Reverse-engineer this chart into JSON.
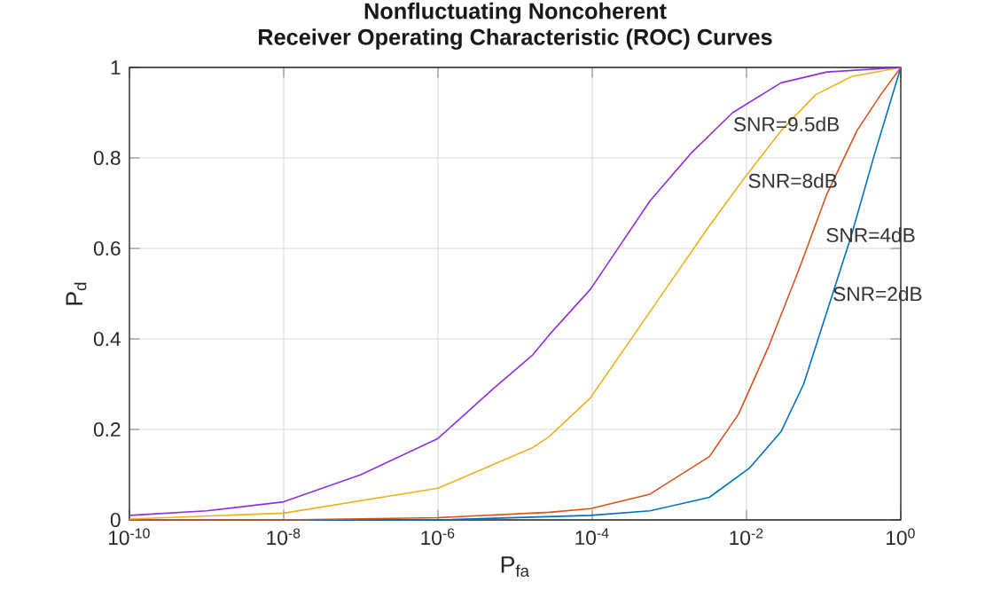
{
  "chart_data": {
    "type": "line",
    "title": "Nonfluctuating Noncoherent",
    "subtitle": "Receiver Operating Characteristic (ROC) Curves",
    "xlabel": "P$_{fa}$",
    "ylabel": "P$_{d}$",
    "log": "x",
    "grid": true,
    "marker": "none",
    "line_style": "solid",
    "xlim": [
      1e-10,
      1
    ],
    "ylim": [
      0,
      1
    ],
    "xticks": [
      {
        "value": 1e-10,
        "label": "10$^{-10}$"
      },
      {
        "value": 1e-08,
        "label": "10$^{-8}$"
      },
      {
        "value": 1e-06,
        "label": "10$^{-6}$"
      },
      {
        "value": 0.0001,
        "label": "10$^{-4}$"
      },
      {
        "value": 0.01,
        "label": "10$^{-2}$"
      },
      {
        "value": 1,
        "label": "10$^{0}$"
      }
    ],
    "yticks": [
      0,
      0.2,
      0.4,
      0.6,
      0.8,
      1
    ],
    "series": [
      {
        "color": "#0072bd",
        "x": [
          1e-10,
          1e-08,
          1e-06,
          9.5e-05,
          0.00056,
          0.0033,
          0.011,
          0.028,
          0.055,
          0.11,
          0.23,
          0.46,
          1
        ],
        "values": [
          0,
          0,
          0,
          0.01,
          0.02,
          0.05,
          0.115,
          0.195,
          0.3,
          0.46,
          0.63,
          0.81,
          1
        ]
      },
      {
        "color": "#d95319",
        "x": [
          1e-10,
          1e-08,
          1e-06,
          2.8e-05,
          9.5e-05,
          0.00056,
          0.0033,
          0.0079,
          0.019,
          0.047,
          0.11,
          0.27,
          0.55,
          1
        ],
        "values": [
          0,
          0,
          0.005,
          0.017,
          0.025,
          0.057,
          0.14,
          0.234,
          0.38,
          0.55,
          0.72,
          0.86,
          0.94,
          1
        ]
      },
      {
        "color": "#edb120",
        "x": [
          1e-10,
          1e-08,
          1e-06,
          1.7e-05,
          2.8e-05,
          9.5e-05,
          0.00056,
          0.0033,
          0.0095,
          0.028,
          0.079,
          0.23,
          1
        ],
        "values": [
          0.002,
          0.015,
          0.07,
          0.16,
          0.185,
          0.27,
          0.46,
          0.65,
          0.757,
          0.86,
          0.94,
          0.98,
          1
        ]
      },
      {
        "color": "#8f2fe0",
        "x": [
          1e-10,
          1e-09,
          1e-08,
          1e-07,
          1e-06,
          5.2e-06,
          1.7e-05,
          2.8e-05,
          9.5e-05,
          0.00056,
          0.0019,
          0.0066,
          0.028,
          0.11,
          1
        ],
        "values": [
          0.01,
          0.02,
          0.04,
          0.1,
          0.18,
          0.29,
          0.365,
          0.41,
          0.51,
          0.705,
          0.81,
          0.9,
          0.966,
          0.99,
          1
        ]
      }
    ],
    "annotations": [
      "SNR=9.5dB",
      "SNR=8dB",
      "SNR=4dB",
      "SNR=2dB"
    ]
  }
}
